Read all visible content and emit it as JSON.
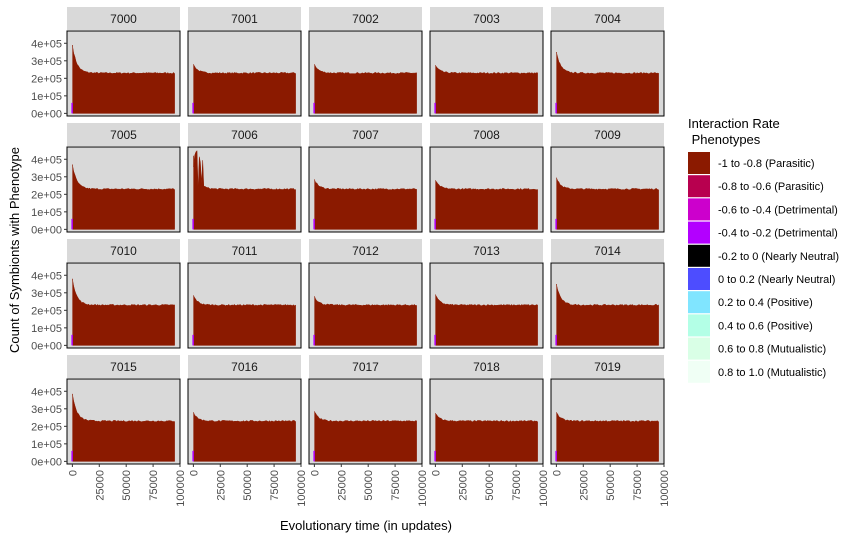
{
  "chart_data": {
    "type": "area",
    "facet_ids": [
      "7000",
      "7001",
      "7002",
      "7003",
      "7004",
      "7005",
      "7006",
      "7007",
      "7008",
      "7009",
      "7010",
      "7011",
      "7012",
      "7013",
      "7014",
      "7015",
      "7016",
      "7017",
      "7018",
      "7019"
    ],
    "xlabel": "Evolutionary time (in updates)",
    "ylabel": "Count of Symbionts with Phenotype",
    "xlim": [
      -5000,
      100000
    ],
    "ylim": [
      -15000,
      470000
    ],
    "x_ticks": [
      0,
      25000,
      50000,
      75000,
      100000
    ],
    "x_tick_labels": [
      "0",
      "25000",
      "50000",
      "75000",
      "100000"
    ],
    "y_ticks": [
      0,
      100000,
      200000,
      300000,
      400000
    ],
    "y_tick_labels": [
      "0e+00",
      "1e+05",
      "2e+05",
      "3e+05",
      "4e+05"
    ],
    "grid": false,
    "panel_background": "#d9d9d9",
    "strip_background": "#d9d9d9",
    "legend_position": "right",
    "legend_title": [
      "Interaction Rate",
      " Phenotypes"
    ],
    "legend": [
      {
        "label": "-1 to -0.8 (Parasitic)",
        "color": "#8b1a00"
      },
      {
        "label": "-0.8 to -0.6 (Parasitic)",
        "color": "#b8004f"
      },
      {
        "label": "-0.6 to -0.4 (Detrimental)",
        "color": "#cc00cc"
      },
      {
        "label": "-0.4 to -0.2 (Detrimental)",
        "color": "#b300ff"
      },
      {
        "label": "-0.2 to 0 (Nearly Neutral)",
        "color": "#000000"
      },
      {
        "label": "0 to 0.2 (Nearly Neutral)",
        "color": "#4d4dff"
      },
      {
        "label": "0.2 to 0.4 (Positive)",
        "color": "#80e5ff"
      },
      {
        "label": "0.4 to 0.6 (Positive)",
        "color": "#b3ffe6"
      },
      {
        "label": "0.6 to 0.8 (Mutualistic)",
        "color": "#d9ffe6"
      },
      {
        "label": "0.8 to 1.0 (Mutualistic)",
        "color": "#f0fff5"
      }
    ],
    "parasitic_series": {
      "name": "-1 to -0.8 (Parasitic)",
      "x": [
        0,
        1000,
        2000,
        4000,
        8000,
        15000,
        25000,
        50000,
        75000,
        95000
      ],
      "plateau_y": 230000,
      "initial_peak_y": {
        "7000": 390000,
        "7001": 280000,
        "7002": 280000,
        "7003": 275000,
        "7004": 350000,
        "7005": 370000,
        "7006": 420000,
        "7007": 285000,
        "7008": 280000,
        "7009": 295000,
        "7010": 380000,
        "7011": 285000,
        "7012": 280000,
        "7013": 290000,
        "7014": 350000,
        "7015": 385000,
        "7016": 280000,
        "7017": 285000,
        "7018": 275000,
        "7019": 280000
      }
    },
    "minor_series": {
      "name": "-0.4 to -0.2 (Detrimental)",
      "x_end": 1200,
      "y_peak": 60000
    }
  }
}
